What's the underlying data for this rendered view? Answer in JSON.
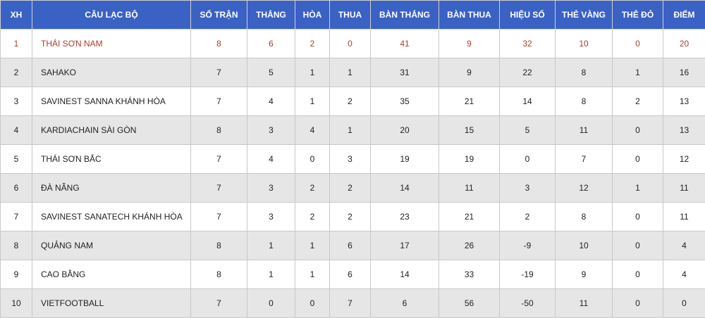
{
  "table": {
    "header": [
      "XH",
      "CÂU LẠC BỘ",
      "SỐ TRẬN",
      "THẮNG",
      "HÒA",
      "THUA",
      "BÀN THẮNG",
      "BÀN THUA",
      "HIỆU SỐ",
      "THẺ VÀNG",
      "THẺ ĐỎ",
      "ĐIỂM"
    ],
    "rows": [
      [
        1,
        "THÁI SƠN NAM",
        8,
        6,
        2,
        0,
        41,
        9,
        32,
        10,
        0,
        20
      ],
      [
        2,
        "SAHAKO",
        7,
        5,
        1,
        1,
        31,
        9,
        22,
        8,
        1,
        16
      ],
      [
        3,
        "SAVINEST SANNA KHÁNH HÒA",
        7,
        4,
        1,
        2,
        35,
        21,
        14,
        8,
        2,
        13
      ],
      [
        4,
        "KARDIACHAIN SÀI GÒN",
        8,
        3,
        4,
        1,
        20,
        15,
        5,
        11,
        0,
        13
      ],
      [
        5,
        "THÁI SƠN BẮC",
        7,
        4,
        0,
        3,
        19,
        19,
        0,
        7,
        0,
        12
      ],
      [
        6,
        "ĐÀ NẴNG",
        7,
        3,
        2,
        2,
        14,
        11,
        3,
        12,
        1,
        11
      ],
      [
        7,
        "SAVINEST SANATECH KHÁNH HÒA",
        7,
        3,
        2,
        2,
        23,
        21,
        2,
        8,
        0,
        11
      ],
      [
        8,
        "QUẢNG NAM",
        8,
        1,
        1,
        6,
        17,
        26,
        -9,
        10,
        0,
        4
      ],
      [
        9,
        "CAO BẰNG",
        8,
        1,
        1,
        6,
        14,
        33,
        -19,
        9,
        0,
        4
      ],
      [
        10,
        "VIETFOOTBALL",
        7,
        0,
        0,
        7,
        6,
        56,
        -50,
        11,
        0,
        0
      ]
    ]
  }
}
